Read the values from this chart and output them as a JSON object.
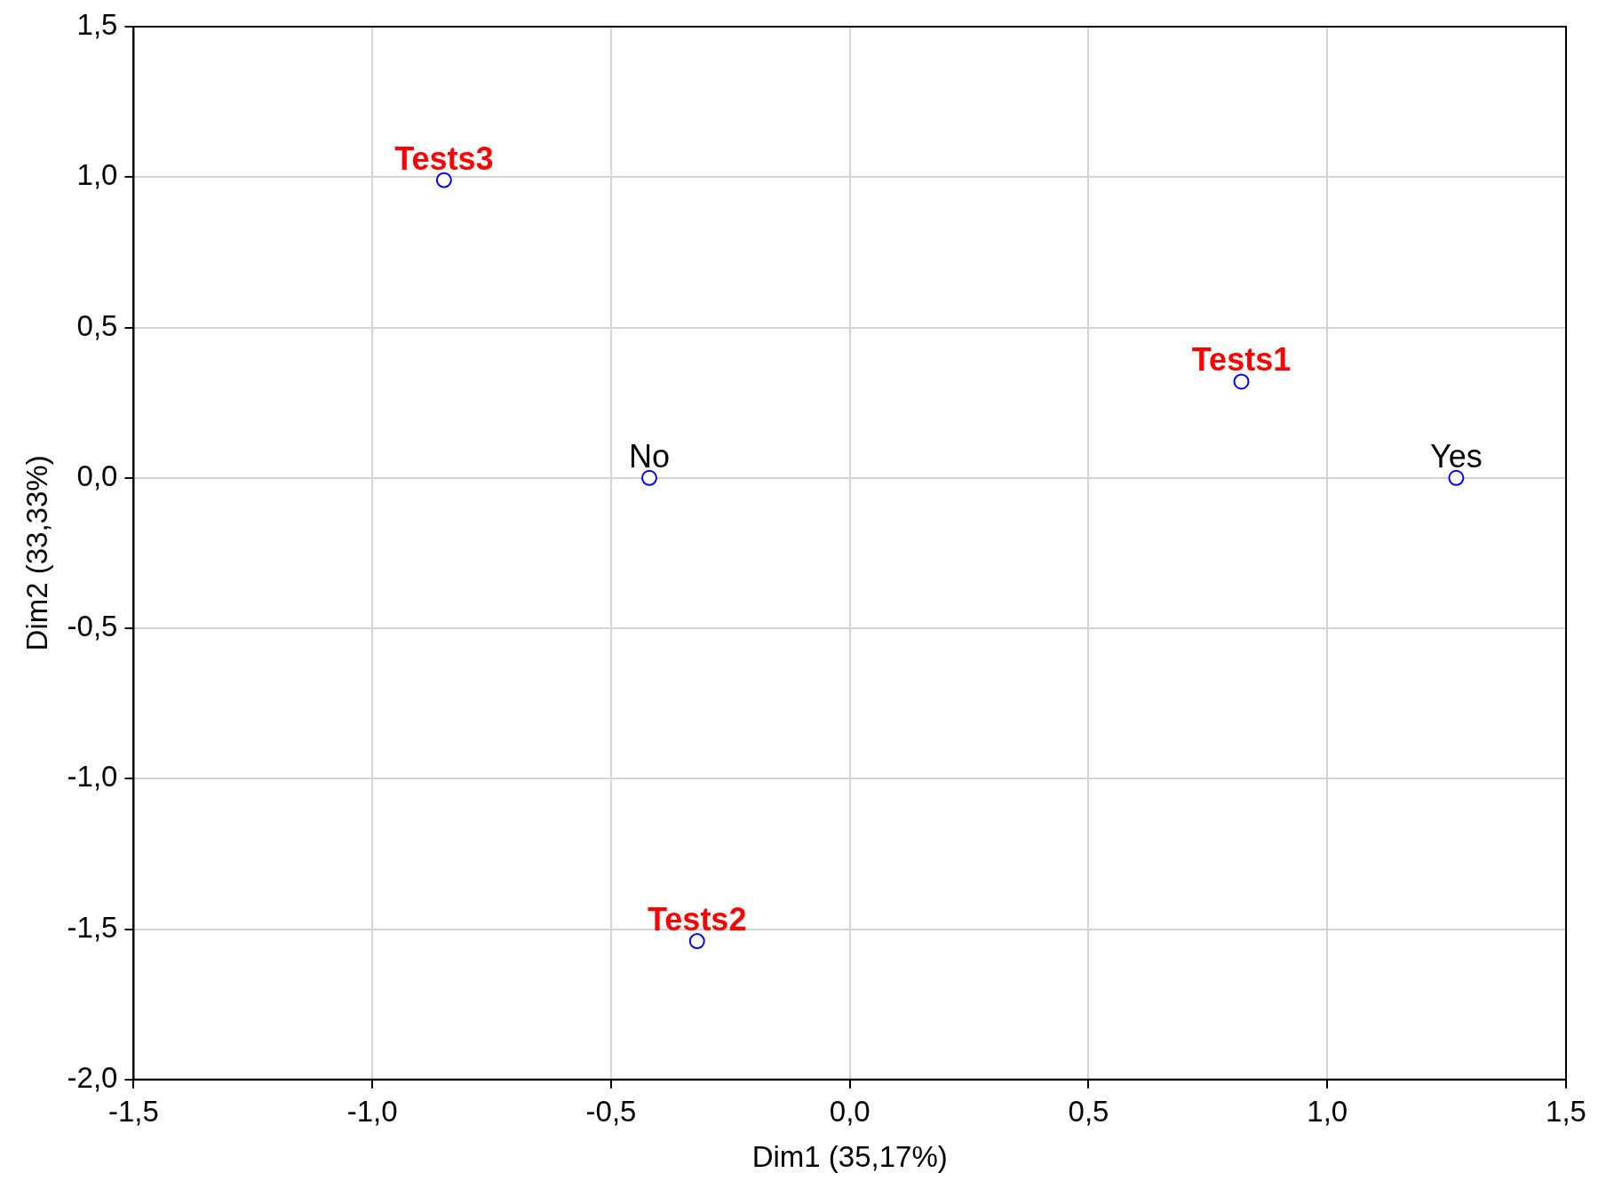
{
  "chart_data": {
    "type": "scatter",
    "xlabel": "Dim1 (35,17%)",
    "ylabel": "Dim2 (33,33%)",
    "xlim": [
      -1.5,
      1.5
    ],
    "ylim": [
      -2.0,
      1.5
    ],
    "xticks": [
      {
        "value": -1.5,
        "label": "-1,5"
      },
      {
        "value": -1.0,
        "label": "-1,0"
      },
      {
        "value": -0.5,
        "label": "-0,5"
      },
      {
        "value": 0,
        "label": "0,0"
      },
      {
        "value": 0.5,
        "label": "0,5"
      },
      {
        "value": 1.0,
        "label": "1,0"
      },
      {
        "value": 1.5,
        "label": "1,5"
      }
    ],
    "yticks": [
      {
        "value": -2.0,
        "label": "-2,0"
      },
      {
        "value": -1.5,
        "label": "-1,5"
      },
      {
        "value": -1.0,
        "label": "-1,0"
      },
      {
        "value": -0.5,
        "label": "-0,5"
      },
      {
        "value": 0,
        "label": "0,0"
      },
      {
        "value": 0.5,
        "label": "0,5"
      },
      {
        "value": 1.0,
        "label": "1,0"
      },
      {
        "value": 1.5,
        "label": "1,5"
      }
    ],
    "grid": true,
    "marker": "circle",
    "series": [
      {
        "color": "#0000ff",
        "x": [
          0.82,
          -0.32,
          -0.85
        ],
        "values": [
          0.32,
          -1.54,
          0.99
        ],
        "value_labels": [
          "Tests1",
          "Tests2",
          "Tests3"
        ]
      },
      {
        "color": "#0000ff",
        "x": [
          -0.42,
          1.27
        ],
        "values": [
          0,
          0
        ],
        "value_labels": [
          "No",
          "Yes"
        ]
      }
    ]
  }
}
